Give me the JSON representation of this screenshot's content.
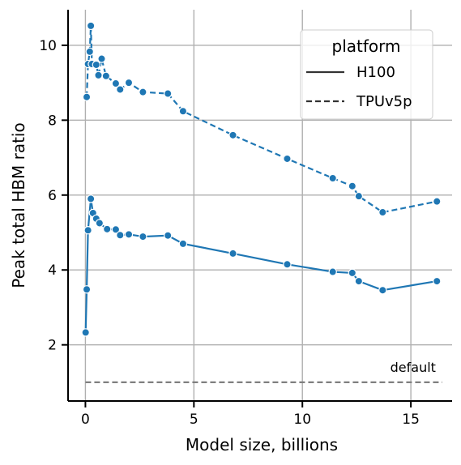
{
  "chart_data": {
    "type": "line",
    "xlabel": "Model size, billions",
    "ylabel": "Peak total HBM ratio",
    "xlim": [
      -0.8,
      16.9
    ],
    "ylim": [
      0.5,
      10.95
    ],
    "xticks": [
      0,
      5,
      10,
      15
    ],
    "yticks": [
      2,
      4,
      6,
      8,
      10
    ],
    "grid": true,
    "color": "#1f77b4",
    "legend": {
      "title": "platform",
      "position": "top-right",
      "entries": [
        {
          "label": "H100",
          "style": "solid"
        },
        {
          "label": "TPUv5p",
          "style": "dashed"
        }
      ]
    },
    "reference_line": {
      "label": "default",
      "y": 1.0,
      "color": "#7f7f7f",
      "style": "dashed",
      "x_range": [
        0,
        16.45
      ]
    },
    "series": [
      {
        "name": "H100",
        "style": "solid",
        "x": [
          0.01,
          0.06,
          0.12,
          0.25,
          0.35,
          0.5,
          0.65,
          1.0,
          1.4,
          1.6,
          2.0,
          2.65,
          3.8,
          4.5,
          6.8,
          9.3,
          11.4,
          12.3,
          12.6,
          13.7,
          16.2
        ],
        "y": [
          2.33,
          3.48,
          5.06,
          5.9,
          5.52,
          5.37,
          5.25,
          5.09,
          5.08,
          4.93,
          4.95,
          4.89,
          4.92,
          4.7,
          4.44,
          4.15,
          3.95,
          3.92,
          3.7,
          3.46,
          3.7
        ]
      },
      {
        "name": "TPUv5p",
        "style": "dashed",
        "x": [
          0.06,
          0.12,
          0.2,
          0.25,
          0.3,
          0.5,
          0.6,
          0.75,
          0.95,
          1.4,
          1.6,
          2.0,
          2.65,
          3.8,
          4.5,
          6.8,
          9.3,
          11.4,
          12.3,
          12.6,
          13.7,
          16.2
        ],
        "y": [
          8.62,
          9.5,
          9.83,
          10.52,
          9.5,
          9.48,
          9.2,
          9.64,
          9.18,
          8.98,
          8.82,
          9.0,
          8.75,
          8.71,
          8.24,
          7.6,
          6.97,
          6.45,
          6.24,
          5.97,
          5.54,
          5.83
        ]
      }
    ]
  }
}
